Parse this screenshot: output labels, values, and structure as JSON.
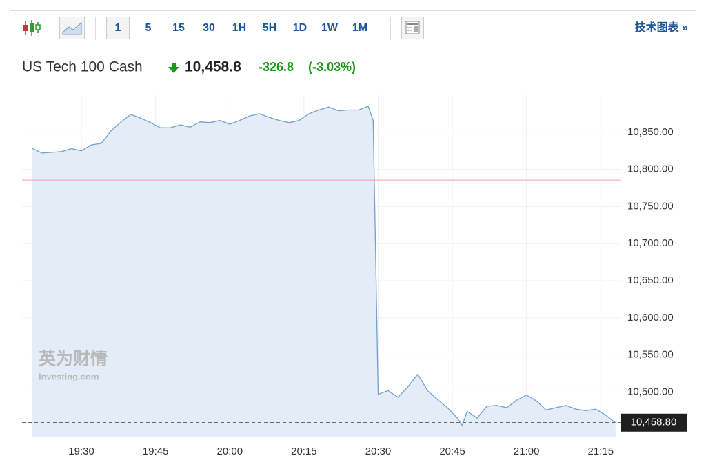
{
  "toolbar": {
    "intervals": [
      "1",
      "5",
      "15",
      "30",
      "1H",
      "5H",
      "1D",
      "1W",
      "1M"
    ],
    "selected": "1",
    "link": "技术图表 »"
  },
  "header": {
    "name": "US Tech 100 Cash",
    "price": "10,458.8",
    "change": "-326.8",
    "change_pct": "(-3.03%)"
  },
  "watermark": {
    "brand": "英为财情",
    "site": "Investing.com"
  },
  "chart_data": {
    "type": "area",
    "color": "#6fa0cf",
    "fill": "#e4edf7",
    "x": [
      "19:20",
      "19:22",
      "19:24",
      "19:26",
      "19:28",
      "19:30",
      "19:32",
      "19:34",
      "19:36",
      "19:38",
      "19:40",
      "19:42",
      "19:44",
      "19:46",
      "19:48",
      "19:50",
      "19:52",
      "19:54",
      "19:56",
      "19:58",
      "20:00",
      "20:02",
      "20:04",
      "20:06",
      "20:08",
      "20:10",
      "20:12",
      "20:14",
      "20:16",
      "20:18",
      "20:20",
      "20:22",
      "20:24",
      "20:26",
      "20:28",
      "20:29",
      "20:30",
      "20:32",
      "20:34",
      "20:36",
      "20:38",
      "20:40",
      "20:42",
      "20:44",
      "20:46",
      "20:47",
      "20:48",
      "20:50",
      "20:52",
      "20:54",
      "20:56",
      "20:58",
      "21:00",
      "21:02",
      "21:04",
      "21:06",
      "21:08",
      "21:10",
      "21:12",
      "21:14",
      "21:16",
      "21:18"
    ],
    "values": [
      10828.5,
      10822,
      10823,
      10824,
      10828,
      10825,
      10833,
      10835,
      10852,
      10864,
      10874,
      10869,
      10863,
      10856,
      10856,
      10860,
      10857,
      10864,
      10863,
      10866,
      10861,
      10866,
      10872,
      10875,
      10870,
      10866,
      10863,
      10866,
      10875,
      10880,
      10884,
      10879,
      10880,
      10880,
      10885,
      10866,
      10497,
      10502,
      10493,
      10507,
      10524,
      10502,
      10490,
      10479,
      10465,
      10455,
      10474,
      10465,
      10481,
      10482,
      10479,
      10489,
      10496,
      10488,
      10476,
      10479,
      10482,
      10477,
      10475,
      10477,
      10469,
      10458.8
    ],
    "xlim": [
      "19:18",
      "21:19"
    ],
    "xticks": [
      "19:30",
      "19:45",
      "20:00",
      "20:15",
      "20:30",
      "20:45",
      "21:00",
      "21:15"
    ],
    "ylim": [
      10440,
      10900
    ],
    "yticks": [
      {
        "value": 10500,
        "label": "10,500.00"
      },
      {
        "value": 10550,
        "label": "10,550.00"
      },
      {
        "value": 10600,
        "label": "10,600.00"
      },
      {
        "value": 10650,
        "label": "10,650.00"
      },
      {
        "value": 10700,
        "label": "10,700.00"
      },
      {
        "value": 10750,
        "label": "10,750.00"
      },
      {
        "value": 10800,
        "label": "10,800.00"
      },
      {
        "value": 10850,
        "label": "10,850.00"
      }
    ],
    "reference_line": {
      "value": 10785.6,
      "color": "#f0a0a0"
    },
    "last_price": {
      "value": 10458.8,
      "label": "10,458.80"
    },
    "grid": true
  }
}
